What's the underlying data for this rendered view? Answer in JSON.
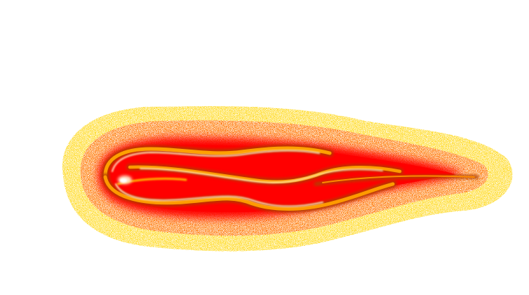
{
  "scene": {
    "subject": "fireball-sprite",
    "background_color": "#ffffff"
  },
  "palette": {
    "halo_yellow": "#ffe000",
    "halo_orange": "#ffa200",
    "halo_red": "#ff1a00",
    "core_red": "#ff0000",
    "ribbon_orange": "#ff8a00",
    "ribbon_dark": "#a83800",
    "highlight": "#fff2c8",
    "tail_dark": "#b04000"
  },
  "icons": {
    "sprite": "fireball-icon"
  }
}
